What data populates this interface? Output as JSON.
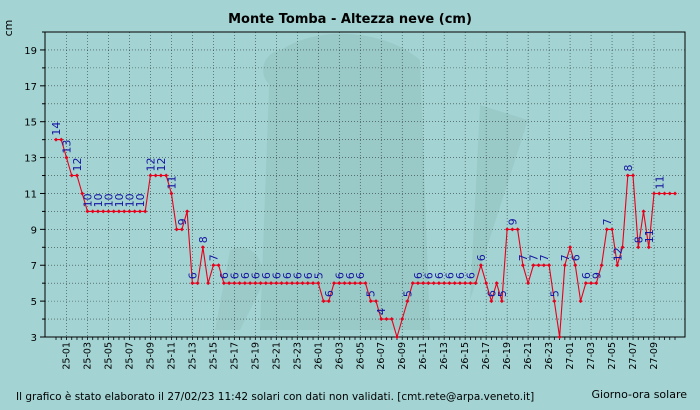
{
  "chart_data": {
    "type": "line",
    "title": "Monte Tomba - Altezza neve (cm)",
    "ylabel": "cm",
    "xlabel": "Giorno-ora solare",
    "ylim": [
      3,
      20
    ],
    "yticks": [
      3,
      5,
      7,
      9,
      11,
      13,
      15,
      17,
      19
    ],
    "x_tick_labels": [
      "25-01",
      "25-03",
      "25-05",
      "25-07",
      "25-09",
      "25-11",
      "25-13",
      "25-15",
      "25-17",
      "25-19",
      "25-21",
      "25-23",
      "26-01",
      "26-03",
      "26-05",
      "26-07",
      "26-09",
      "26-11",
      "26-13",
      "26-15",
      "26-17",
      "26-19",
      "26-21",
      "26-23",
      "27-01",
      "27-03",
      "27-05",
      "27-07",
      "27-09"
    ],
    "grid": true,
    "series": [
      {
        "color": "#e8001a",
        "label_color": "#1414a0",
        "values": [
          14,
          14,
          13,
          12,
          12,
          11,
          10,
          10,
          10,
          10,
          10,
          10,
          10,
          10,
          10,
          10,
          10,
          10,
          12,
          12,
          12,
          12,
          11,
          9,
          9,
          10,
          6,
          6,
          8,
          6,
          7,
          7,
          6,
          6,
          6,
          6,
          6,
          6,
          6,
          6,
          6,
          6,
          6,
          6,
          6,
          6,
          6,
          6,
          6,
          6,
          6,
          5,
          5,
          6,
          6,
          6,
          6,
          6,
          6,
          6,
          5,
          5,
          4,
          4,
          4,
          3,
          4,
          5,
          6,
          6,
          6,
          6,
          6,
          6,
          6,
          6,
          6,
          6,
          6,
          6,
          6,
          7,
          6,
          5,
          6,
          5,
          9,
          9,
          9,
          7,
          6,
          7,
          7,
          7,
          7,
          5,
          3,
          7,
          8,
          7,
          5,
          6,
          6,
          6,
          7,
          9,
          9,
          7,
          8,
          12,
          12,
          8,
          10,
          8,
          11,
          11,
          11,
          11,
          11
        ],
        "labels": [
          {
            "i": 0,
            "t": "14"
          },
          {
            "i": 2,
            "t": "13"
          },
          {
            "i": 4,
            "t": "12"
          },
          {
            "i": 6,
            "t": "10"
          },
          {
            "i": 8,
            "t": "10"
          },
          {
            "i": 10,
            "t": "10"
          },
          {
            "i": 12,
            "t": "10"
          },
          {
            "i": 14,
            "t": "10"
          },
          {
            "i": 16,
            "t": "10"
          },
          {
            "i": 18,
            "t": "12"
          },
          {
            "i": 20,
            "t": "12"
          },
          {
            "i": 22,
            "t": "11"
          },
          {
            "i": 24,
            "t": "9"
          },
          {
            "i": 26,
            "t": "6"
          },
          {
            "i": 28,
            "t": "8"
          },
          {
            "i": 30,
            "t": "7"
          },
          {
            "i": 32,
            "t": "6"
          },
          {
            "i": 34,
            "t": "6"
          },
          {
            "i": 36,
            "t": "6"
          },
          {
            "i": 38,
            "t": "6"
          },
          {
            "i": 40,
            "t": "6"
          },
          {
            "i": 42,
            "t": "6"
          },
          {
            "i": 44,
            "t": "6"
          },
          {
            "i": 46,
            "t": "6"
          },
          {
            "i": 48,
            "t": "6"
          },
          {
            "i": 50,
            "t": "5"
          },
          {
            "i": 52,
            "t": "6"
          },
          {
            "i": 54,
            "t": "6"
          },
          {
            "i": 56,
            "t": "6"
          },
          {
            "i": 58,
            "t": "6"
          },
          {
            "i": 60,
            "t": "5"
          },
          {
            "i": 62,
            "t": "4"
          },
          {
            "i": 67,
            "t": "5"
          },
          {
            "i": 69,
            "t": "6"
          },
          {
            "i": 71,
            "t": "6"
          },
          {
            "i": 73,
            "t": "6"
          },
          {
            "i": 75,
            "t": "6"
          },
          {
            "i": 77,
            "t": "6"
          },
          {
            "i": 79,
            "t": "6"
          },
          {
            "i": 81,
            "t": "6"
          },
          {
            "i": 83,
            "t": "6"
          },
          {
            "i": 85,
            "t": "5"
          },
          {
            "i": 87,
            "t": "9"
          },
          {
            "i": 89,
            "t": "7"
          },
          {
            "i": 91,
            "t": "7"
          },
          {
            "i": 93,
            "t": "7"
          },
          {
            "i": 95,
            "t": "5"
          },
          {
            "i": 97,
            "t": "7"
          },
          {
            "i": 99,
            "t": "6"
          },
          {
            "i": 101,
            "t": "6"
          },
          {
            "i": 103,
            "t": "9"
          },
          {
            "i": 105,
            "t": "7"
          },
          {
            "i": 107,
            "t": "12"
          },
          {
            "i": 109,
            "t": "8"
          },
          {
            "i": 111,
            "t": "8"
          },
          {
            "i": 113,
            "t": "11"
          },
          {
            "i": 115,
            "t": "11"
          }
        ]
      }
    ]
  },
  "footer": {
    "note": "Il grafico è stato elaborato il 27/02/23 11:42 solari con dati non validati. [cmt.rete@arpa.veneto.it]"
  }
}
